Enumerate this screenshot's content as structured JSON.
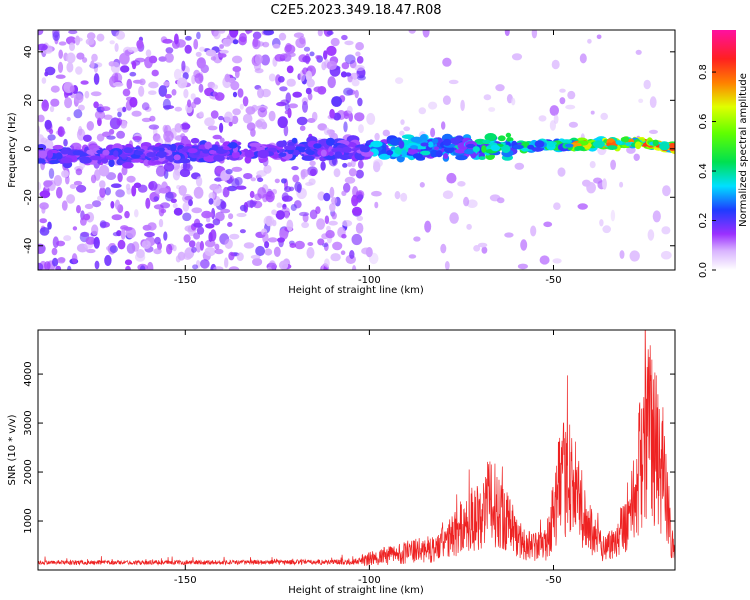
{
  "chart_data": [
    {
      "type": "heatmap",
      "title": "C2E5.2023.349.18.47.R08",
      "xlabel": "Height of straight line (km)",
      "ylabel": "Frequency (Hz)",
      "xlim": [
        -190,
        -17
      ],
      "ylim": [
        -50,
        49
      ],
      "x_ticks": [
        -150,
        -100,
        -50
      ],
      "y_ticks": [
        -40,
        -20,
        0,
        20,
        40
      ],
      "colorbar": {
        "label": "Normalized spectral amplitude",
        "range": [
          0.0,
          0.97
        ],
        "ticks": [
          0.0,
          0.2,
          0.4,
          0.6,
          0.8
        ],
        "colors": [
          "#ffffff",
          "#9b30ff",
          "#1e3cff",
          "#00e0ff",
          "#00e050",
          "#e0ff00",
          "#ff8000",
          "#ff2020",
          "#ff10a0"
        ]
      },
      "description_points": [
        {
          "x": -150,
          "freq": -3,
          "amplitude": 0.12
        },
        {
          "x": -100,
          "freq": -2,
          "amplitude": 0.22
        },
        {
          "x": -75,
          "freq": -1,
          "amplitude": 0.3
        },
        {
          "x": -50,
          "freq": 1,
          "amplitude": 0.45
        },
        {
          "x": -40,
          "freq": 2,
          "amplitude": 0.65
        },
        {
          "x": -30,
          "freq": 3,
          "amplitude": 0.85
        },
        {
          "x": -20,
          "freq": 1,
          "amplitude": 0.8
        }
      ]
    },
    {
      "type": "line",
      "xlabel": "Height of straight line (km)",
      "ylabel": "SNR (10 * v/v)",
      "xlim": [
        -190,
        -17
      ],
      "ylim": [
        0,
        4900
      ],
      "x_ticks": [
        -150,
        -100,
        -50
      ],
      "y_ticks": [
        1000,
        2000,
        3000,
        4000
      ],
      "line_color": "#ee2222",
      "envelope": [
        {
          "x": -190,
          "y": 150
        },
        {
          "x": -160,
          "y": 160
        },
        {
          "x": -130,
          "y": 170
        },
        {
          "x": -105,
          "y": 200
        },
        {
          "x": -98,
          "y": 350
        },
        {
          "x": -90,
          "y": 500
        },
        {
          "x": -82,
          "y": 600
        },
        {
          "x": -78,
          "y": 900
        },
        {
          "x": -74,
          "y": 1300
        },
        {
          "x": -70,
          "y": 1600
        },
        {
          "x": -67,
          "y": 1950
        },
        {
          "x": -63,
          "y": 1500
        },
        {
          "x": -60,
          "y": 900
        },
        {
          "x": -56,
          "y": 650
        },
        {
          "x": -52,
          "y": 700
        },
        {
          "x": -49,
          "y": 2100
        },
        {
          "x": -46,
          "y": 2800
        },
        {
          "x": -44,
          "y": 2200
        },
        {
          "x": -42,
          "y": 1500
        },
        {
          "x": -39,
          "y": 950
        },
        {
          "x": -36,
          "y": 650
        },
        {
          "x": -34,
          "y": 750
        },
        {
          "x": -31,
          "y": 1300
        },
        {
          "x": -28,
          "y": 2000
        },
        {
          "x": -26,
          "y": 3200
        },
        {
          "x": -24,
          "y": 4000
        },
        {
          "x": -22,
          "y": 3300
        },
        {
          "x": -20,
          "y": 2700
        },
        {
          "x": -18.5,
          "y": 1200
        },
        {
          "x": -17,
          "y": 300
        }
      ]
    }
  ]
}
